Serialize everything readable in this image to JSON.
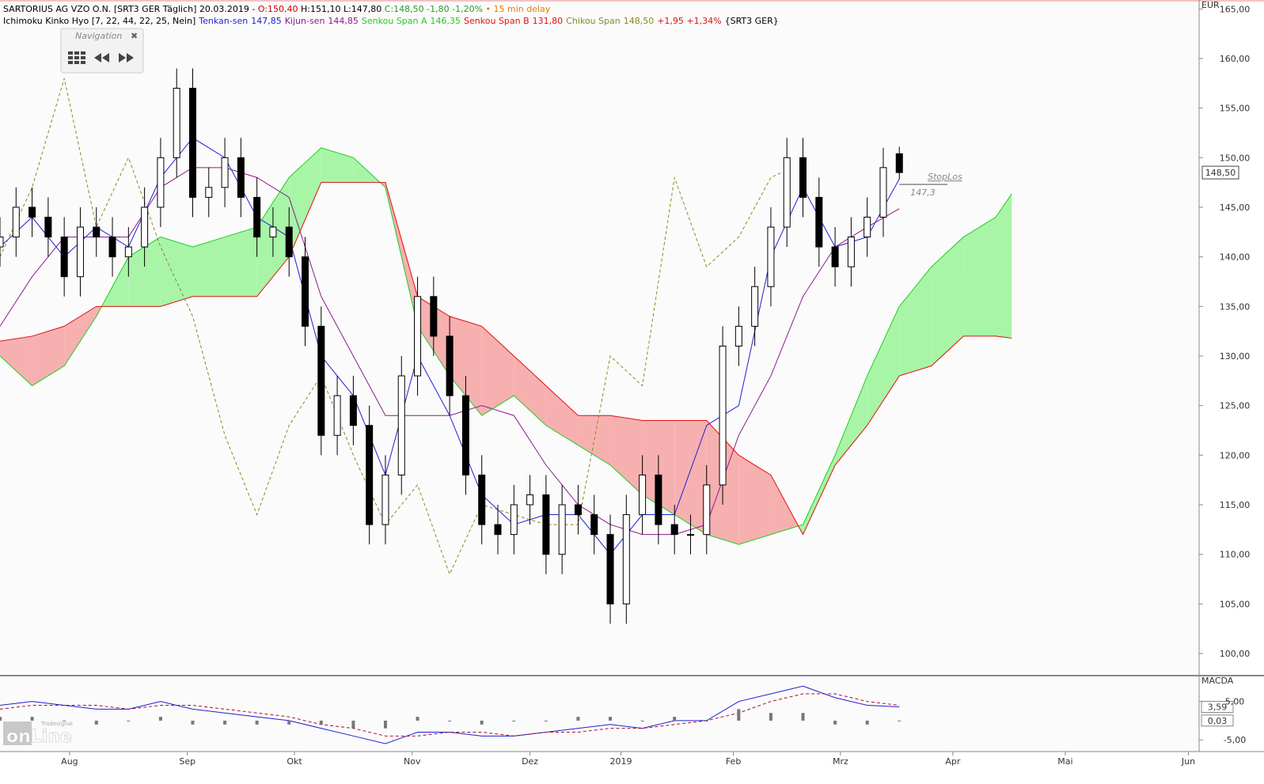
{
  "header": {
    "line1": [
      {
        "text": "SARTORIUS AG VZO O.N. [SRT3 GER Täglich] 20.03.2019 - ",
        "color": "#000000"
      },
      {
        "text": "O:150,40",
        "color": "#d00000"
      },
      {
        "text": " H:151,10 L:147,80 ",
        "color": "#000000"
      },
      {
        "text": "C:148,50 -1,80 -1,20%",
        "color": "#2a9a2a"
      },
      {
        "text": " • 15 min delay",
        "color": "#e08000"
      }
    ],
    "indicator": "Ichimoku Kinko Hyo [7, 22, 44, 22, 25, Nein]",
    "chikou_change": "+1,95 +1,34%",
    "suffix": "{SRT3 GER}"
  },
  "navigation": {
    "title": "Navigation",
    "close": "✖"
  },
  "logo": {
    "brand": "Tradesignal",
    "name": "onLine"
  },
  "chart_data": [
    {
      "type": "candlestick",
      "currency": "EUR",
      "xlim": [
        0,
        224
      ],
      "ylim": [
        97.85,
        165.9
      ],
      "xticks": [
        {
          "value": 13,
          "label": "Aug"
        },
        {
          "value": 35,
          "label": "Sep"
        },
        {
          "value": 55,
          "label": "Okt"
        },
        {
          "value": 77,
          "label": "Nov"
        },
        {
          "value": 99,
          "label": "Dez"
        },
        {
          "value": 116,
          "label": "2019"
        },
        {
          "value": 137,
          "label": "Feb"
        },
        {
          "value": 157,
          "label": "Mrz"
        },
        {
          "value": 178,
          "label": "Apr"
        },
        {
          "value": 199,
          "label": "Mai"
        },
        {
          "value": 222,
          "label": "Jun"
        }
      ],
      "yticks": [
        {
          "value": 100,
          "label": "100,00"
        },
        {
          "value": 105,
          "label": "105,00"
        },
        {
          "value": 110,
          "label": "110,00"
        },
        {
          "value": 115,
          "label": "115,00"
        },
        {
          "value": 120,
          "label": "120,00"
        },
        {
          "value": 125,
          "label": "125,00"
        },
        {
          "value": 130,
          "label": "130,00"
        },
        {
          "value": 135,
          "label": "135,00"
        },
        {
          "value": 140,
          "label": "140,00"
        },
        {
          "value": 145,
          "label": "145,00"
        },
        {
          "value": 150,
          "label": "150,00"
        },
        {
          "value": 155,
          "label": "155,00"
        },
        {
          "value": 160,
          "label": "160,00"
        },
        {
          "value": 165,
          "label": "165,00"
        }
      ],
      "x": [
        0,
        3,
        6,
        9,
        12,
        15,
        18,
        21,
        24,
        27,
        30,
        33,
        36,
        39,
        42,
        45,
        48,
        51,
        54,
        57,
        60,
        63,
        66,
        69,
        72,
        75,
        78,
        81,
        84,
        87,
        90,
        93,
        96,
        99,
        102,
        105,
        108,
        111,
        114,
        117,
        120,
        123,
        126,
        129,
        132,
        135,
        138,
        141,
        144,
        147,
        150,
        153,
        156,
        159,
        162,
        165,
        168
      ],
      "open": [
        141,
        142,
        145,
        144,
        142,
        138,
        143,
        142,
        140,
        141,
        145,
        150,
        157,
        146,
        147,
        150,
        146,
        142,
        143,
        140,
        133,
        122,
        126,
        123,
        113,
        118,
        128,
        136,
        132,
        126,
        118,
        113,
        112,
        115,
        116,
        110,
        115,
        114,
        112,
        105,
        114,
        118,
        113,
        112,
        112,
        117,
        131,
        133,
        137,
        143,
        150,
        146,
        141,
        139,
        142,
        144,
        150.4
      ],
      "high": [
        144,
        147,
        147,
        146,
        144,
        145,
        145,
        144,
        143,
        147,
        152,
        159,
        159,
        149,
        152,
        152,
        148,
        145,
        145,
        142,
        135,
        128,
        128,
        125,
        120,
        130,
        138,
        138,
        134,
        128,
        120,
        115,
        117,
        118,
        118,
        117,
        117,
        116,
        114,
        116,
        120,
        120,
        115,
        114,
        119,
        133,
        135,
        139,
        145,
        152,
        152,
        148,
        143,
        144,
        146,
        151,
        151.1
      ],
      "low": [
        139,
        140,
        142,
        140,
        136,
        136,
        140,
        138,
        138,
        139,
        143,
        148,
        144,
        144,
        145,
        144,
        140,
        140,
        138,
        131,
        120,
        120,
        121,
        111,
        111,
        116,
        126,
        130,
        124,
        116,
        111,
        110,
        110,
        113,
        108,
        108,
        112,
        110,
        103,
        103,
        112,
        111,
        110,
        110,
        110,
        115,
        129,
        131,
        135,
        141,
        144,
        139,
        137,
        137,
        140,
        142,
        147.8
      ],
      "close": [
        142,
        145,
        144,
        142,
        138,
        143,
        142,
        140,
        141,
        145,
        150,
        157,
        146,
        147,
        150,
        146,
        142,
        143,
        140,
        133,
        122,
        126,
        123,
        113,
        118,
        128,
        136,
        132,
        126,
        118,
        113,
        112,
        115,
        116,
        110,
        115,
        114,
        112,
        105,
        114,
        118,
        113,
        112,
        112,
        117,
        131,
        133,
        137,
        143,
        150,
        146,
        141,
        139,
        142,
        144,
        149,
        148.5
      ],
      "last": {
        "value": 148.5,
        "label": "148,50"
      },
      "stop": {
        "name": "StopLos",
        "value": 147.3,
        "label": "147,3",
        "x": [
          168,
          177
        ]
      },
      "series": [
        {
          "name": "Tenkan-sen",
          "last_label": "147,85",
          "color": "#1f1fd6",
          "x": [
            0,
            6,
            12,
            18,
            24,
            30,
            36,
            42,
            48,
            54,
            60,
            66,
            72,
            78,
            84,
            90,
            96,
            102,
            108,
            114,
            120,
            126,
            132,
            138,
            144,
            150,
            156,
            162,
            168
          ],
          "values": [
            141,
            144,
            140,
            143,
            141,
            148,
            152,
            150,
            144,
            142,
            130,
            126,
            118,
            130,
            124,
            116,
            113,
            114,
            114,
            110,
            114,
            114,
            123,
            125,
            140,
            147,
            141,
            142,
            147.85
          ]
        },
        {
          "name": "Kijun-sen",
          "last_label": "144,85",
          "color": "#8b1a8b",
          "x": [
            0,
            6,
            12,
            18,
            24,
            30,
            36,
            42,
            48,
            54,
            60,
            66,
            72,
            78,
            84,
            90,
            96,
            102,
            108,
            114,
            120,
            126,
            132,
            138,
            144,
            150,
            156,
            162,
            168
          ],
          "values": [
            133,
            138,
            142,
            142,
            142,
            147,
            149,
            149,
            148,
            146,
            136,
            130,
            124,
            124,
            124,
            125,
            124,
            119,
            115,
            113,
            112,
            112,
            113,
            122,
            128,
            136,
            141,
            143,
            144.85
          ]
        },
        {
          "name": "Senkou Span A",
          "last_label": "146,35",
          "color": "#22cc22",
          "x": [
            0,
            6,
            12,
            18,
            24,
            30,
            36,
            42,
            48,
            54,
            60,
            66,
            72,
            78,
            84,
            90,
            96,
            102,
            108,
            114,
            120,
            126,
            132,
            138,
            144,
            150,
            156,
            162,
            168,
            174,
            180,
            186,
            189
          ],
          "values": [
            130,
            127,
            129,
            134,
            140,
            142,
            141,
            142,
            143,
            148,
            151,
            150,
            147,
            133,
            128,
            124,
            126,
            123,
            121,
            119,
            116,
            114,
            112,
            111,
            112,
            113,
            120,
            128,
            135,
            139,
            142,
            144,
            146.35
          ]
        },
        {
          "name": "Senkou Span B",
          "last_label": "131,80",
          "color": "#e01010",
          "x": [
            0,
            6,
            12,
            18,
            24,
            30,
            36,
            42,
            48,
            54,
            60,
            66,
            72,
            78,
            84,
            90,
            96,
            102,
            108,
            114,
            120,
            126,
            132,
            138,
            144,
            150,
            156,
            162,
            168,
            174,
            180,
            186,
            189
          ],
          "values": [
            131.5,
            132,
            133,
            135,
            135,
            135,
            136,
            136,
            136,
            140,
            147.5,
            147.5,
            147.5,
            136,
            134,
            133,
            130,
            127,
            124,
            124,
            123.5,
            123.5,
            123.5,
            120,
            118,
            112,
            119,
            123,
            128,
            129,
            132,
            132,
            131.8
          ]
        },
        {
          "name": "Chikou Span",
          "last_label": "148,50",
          "color": "#8a8a20",
          "dash": true,
          "x": [
            0,
            6,
            12,
            18,
            24,
            30,
            36,
            42,
            48,
            54,
            60,
            66,
            72,
            78,
            84,
            90,
            96,
            102,
            108,
            114,
            120,
            126,
            132,
            138,
            144,
            146
          ],
          "values": [
            140,
            147,
            158,
            143,
            150,
            141,
            134,
            122,
            114,
            123,
            128,
            120,
            113,
            117,
            108,
            115,
            114,
            113,
            113,
            130,
            127,
            148,
            139,
            142,
            148,
            148.5
          ]
        }
      ],
      "cloud_colors": {
        "up": "#a8f5a8",
        "down": "#f7b0b0"
      }
    },
    {
      "type": "macd",
      "title": "MACDA",
      "ylim": [
        -8.06,
        11.33
      ],
      "yticks": [
        {
          "value": 5,
          "label": "5,00"
        },
        {
          "value": -5,
          "label": "-5,00"
        }
      ],
      "x": [
        0,
        6,
        12,
        18,
        24,
        30,
        36,
        42,
        48,
        54,
        60,
        66,
        72,
        78,
        84,
        90,
        96,
        102,
        108,
        114,
        120,
        126,
        132,
        138,
        144,
        150,
        156,
        162,
        168
      ],
      "series": [
        {
          "name": "MACD",
          "color": "#1f1fd6",
          "values": [
            4,
            5,
            4,
            3,
            3,
            5,
            3,
            2,
            1,
            0,
            -2,
            -4,
            -6,
            -3,
            -3,
            -4,
            -4,
            -3,
            -2,
            -1,
            -2,
            0,
            0,
            5,
            7,
            9,
            6,
            4,
            3.59
          ],
          "value_label": "3,59"
        },
        {
          "name": "Signal",
          "color": "#a01030",
          "dash": true,
          "values": [
            3,
            4,
            4,
            4,
            3,
            4,
            4,
            3,
            2,
            1,
            -1,
            -2,
            -4,
            -4,
            -3,
            -3,
            -4,
            -3,
            -3,
            -2,
            -2,
            -1,
            0,
            2,
            5,
            7,
            7,
            5,
            4
          ]
        },
        {
          "name": "Histogramm",
          "color": "#777777",
          "histogram": true,
          "values": [
            1,
            1,
            0,
            -1,
            0,
            1,
            -1,
            -1,
            -1,
            -1,
            -1,
            -2,
            -2,
            1,
            0,
            -1,
            0,
            0,
            1,
            1,
            0,
            1,
            0,
            3,
            2,
            2,
            -1,
            -1,
            0.03
          ],
          "value_label": "0,03"
        }
      ]
    }
  ]
}
